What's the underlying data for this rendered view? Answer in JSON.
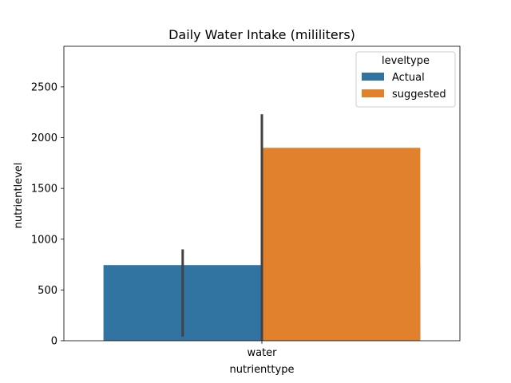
{
  "chart_data": {
    "type": "bar",
    "title": "Daily Water Intake (mililiters)",
    "xlabel": "nutrienttype",
    "ylabel": "nutrientlevel",
    "categories": [
      "water"
    ],
    "ylim": [
      0,
      2900
    ],
    "yticks": [
      0,
      500,
      1000,
      1500,
      2000,
      2500
    ],
    "grid": false,
    "legend": {
      "title": "leveltype",
      "position": "top-right"
    },
    "series": [
      {
        "name": "Actual",
        "color": "#3274a1",
        "values": [
          745
        ],
        "error_low": [
          40
        ],
        "error_high": [
          900
        ]
      },
      {
        "name": "suggested",
        "color": "#e1812c",
        "values": [
          1900
        ],
        "error_low": [
          0
        ],
        "error_high": [
          2230
        ]
      }
    ],
    "errorbar_color": "#424242"
  }
}
